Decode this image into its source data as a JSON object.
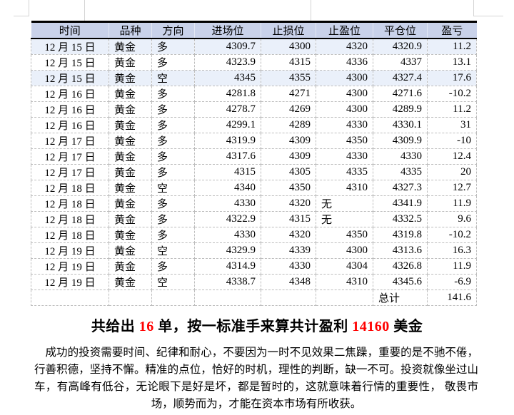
{
  "colors": {
    "header_bg": "#c9d2ea",
    "band_bg": "#eaf0fa",
    "accent_red": "#ff0000",
    "text": "#000000"
  },
  "table": {
    "headers": [
      "时间",
      "品种",
      "方向",
      "进场位",
      "止损位",
      "止盈位",
      "平仓位",
      "盈亏"
    ],
    "column_keys": [
      "time",
      "product",
      "direction",
      "entry",
      "stop-loss",
      "take-profit",
      "close",
      "pnl"
    ],
    "rows": [
      [
        "12 月 15 日",
        "黄金",
        "多",
        "4309.7",
        "4300",
        "4320",
        "4320.9",
        "11.2"
      ],
      [
        "12 月 15 日",
        "黄金",
        "多",
        "4323.9",
        "4315",
        "4336",
        "4337",
        "13.1"
      ],
      [
        "12 月 15 日",
        "黄金",
        "空",
        "4345",
        "4355",
        "4300",
        "4327.4",
        "17.6"
      ],
      [
        "12 月 16 日",
        "黄金",
        "多",
        "4281.8",
        "4271",
        "4300",
        "4271.6",
        "-10.2"
      ],
      [
        "12 月 16 日",
        "黄金",
        "多",
        "4278.7",
        "4269",
        "4300",
        "4289.9",
        "11.2"
      ],
      [
        "12 月 16 日",
        "黄金",
        "多",
        "4299.1",
        "4289",
        "4330",
        "4330.1",
        "31"
      ],
      [
        "12 月 17 日",
        "黄金",
        "多",
        "4319.9",
        "4309",
        "4350",
        "4309.9",
        "-10"
      ],
      [
        "12 月 17 日",
        "黄金",
        "多",
        "4317.6",
        "4309",
        "4330",
        "4330",
        "12.4"
      ],
      [
        "12 月 17 日",
        "黄金",
        "多",
        "4315",
        "4305",
        "4335",
        "4335",
        "20"
      ],
      [
        "12 月 18 日",
        "黄金",
        "空",
        "4340",
        "4350",
        "4310",
        "4327.3",
        "12.7"
      ],
      [
        "12 月 18 日",
        "黄金",
        "多",
        "4330",
        "4320",
        "无",
        "4341.9",
        "11.9"
      ],
      [
        "12 月 18 日",
        "黄金",
        "多",
        "4322.9",
        "4315",
        "无",
        "4332.5",
        "9.6"
      ],
      [
        "12 月 18 日",
        "黄金",
        "多",
        "4330",
        "4320",
        "4350",
        "4319.8",
        "-10.2"
      ],
      [
        "12 月 19 日",
        "黄金",
        "空",
        "4329.9",
        "4339",
        "4300",
        "4313.6",
        "16.3"
      ],
      [
        "12 月 19 日",
        "黄金",
        "多",
        "4314.9",
        "4330",
        "4304",
        "4326.8",
        "11.9"
      ],
      [
        "12 月 19 日",
        "黄金",
        "空",
        "4338.7",
        "4348",
        "4310",
        "4345.6",
        "-6.9"
      ]
    ],
    "shaded_rows": [
      0,
      2
    ],
    "total_label": "总计",
    "total_value": "141.6"
  },
  "summary": {
    "segments": [
      {
        "text": "共给出 ",
        "red": false
      },
      {
        "text": "16",
        "red": true
      },
      {
        "text": " 单，按一标准手来算共计盈利 ",
        "red": false
      },
      {
        "text": "14160",
        "red": true
      },
      {
        "text": " 美金",
        "red": false
      }
    ]
  },
  "paragraph": {
    "lines": [
      "成功的投资需要时间、纪律和耐心，不要因为一时不见效果二焦躁，重要的是不驰不倦，",
      "行善积德，坚持不懈。精准的点位，恰好的时机，理性的判断，缺一不可。投资就像坐过山",
      "车，有高峰有低谷，无论眼下是好是坏，都是暂时的，这就意味着行情的重要性， 敬畏市",
      "场，顺势而为，才能在资本市场有所收获。"
    ]
  }
}
